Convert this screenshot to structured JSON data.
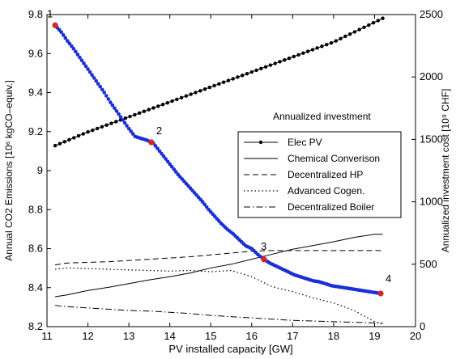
{
  "chart_data": {
    "type": "line",
    "xlabel": "PV installed capacity [GW]",
    "ylabel_left": "Annual CO2 Emissions [10⁶ kgCO–equiv.]",
    "ylabel_right": "Annualized investment cost [10⁹ CHF]",
    "xlim": [
      11,
      20
    ],
    "ylim_left": [
      8.2,
      9.8
    ],
    "ylim_right": [
      0,
      2500
    ],
    "xticks": [
      "11",
      "12",
      "13",
      "14",
      "15",
      "16",
      "17",
      "18",
      "19",
      "20"
    ],
    "yticks_left": [
      "8.2",
      "8.4",
      "8.6",
      "8.8",
      "9",
      "9.2",
      "9.4",
      "9.6",
      "9.8"
    ],
    "yticks_right": [
      "0",
      "500",
      "1000",
      "1500",
      "2000",
      "2500"
    ],
    "grid": false,
    "emissions": {
      "color": "#1a2fd6",
      "x": [
        11.2,
        11.35,
        11.5,
        11.65,
        11.8,
        11.95,
        12.1,
        12.25,
        12.4,
        12.55,
        12.7,
        12.85,
        13.0,
        13.15,
        13.3,
        13.45,
        13.6,
        13.75,
        13.9,
        14.05,
        14.2,
        14.35,
        14.5,
        14.65,
        14.8,
        14.95,
        15.1,
        15.25,
        15.4,
        15.55,
        15.7,
        15.85,
        16.0,
        16.15,
        16.3,
        16.45,
        16.6,
        16.75,
        16.9,
        17.05,
        17.2,
        17.35,
        17.5,
        17.65,
        17.8,
        17.95,
        18.1,
        18.25,
        18.4,
        18.55,
        18.7,
        18.85,
        19.0,
        19.15
      ],
      "y": [
        9.745,
        9.71,
        9.665,
        9.625,
        9.58,
        9.535,
        9.49,
        9.445,
        9.4,
        9.35,
        9.305,
        9.26,
        9.215,
        9.175,
        9.165,
        9.155,
        9.14,
        9.1,
        9.06,
        9.02,
        8.98,
        8.945,
        8.91,
        8.875,
        8.84,
        8.8,
        8.765,
        8.73,
        8.7,
        8.675,
        8.645,
        8.615,
        8.6,
        8.57,
        8.545,
        8.525,
        8.51,
        8.495,
        8.48,
        8.465,
        8.455,
        8.445,
        8.435,
        8.43,
        8.42,
        8.41,
        8.405,
        8.4,
        8.395,
        8.39,
        8.385,
        8.38,
        8.375,
        8.37
      ]
    },
    "highlight_points": [
      {
        "label": "1",
        "x": 11.2,
        "y": 9.745
      },
      {
        "label": "2",
        "x": 13.55,
        "y": 9.145
      },
      {
        "label": "3",
        "x": 16.3,
        "y": 8.545
      },
      {
        "label": "4",
        "x": 19.15,
        "y": 8.37
      }
    ],
    "highlight_color": "#d62728",
    "legend": {
      "title": "Annualized investment",
      "placement": "center-right"
    },
    "series": [
      {
        "name": "Elec PV",
        "style": "solid-marker",
        "x": [
          11.2,
          12,
          13,
          14,
          15,
          16,
          17,
          18,
          19.2
        ],
        "values": [
          1450,
          1560,
          1680,
          1800,
          1920,
          2040,
          2160,
          2280,
          2470
        ]
      },
      {
        "name": "Chemical Converison",
        "style": "solid",
        "x": [
          11.2,
          11.5,
          12,
          12.5,
          13,
          13.5,
          14,
          14.5,
          15,
          15.5,
          16,
          16.5,
          17,
          17.5,
          18,
          18.5,
          19,
          19.2
        ],
        "values": [
          240,
          255,
          290,
          315,
          345,
          375,
          400,
          430,
          470,
          500,
          540,
          580,
          620,
          650,
          680,
          715,
          740,
          740
        ]
      },
      {
        "name": "Decentralized HP",
        "style": "dashed",
        "x": [
          11.2,
          11.5,
          12,
          12.5,
          13,
          13.5,
          14,
          14.5,
          15,
          15.5,
          16,
          16.5,
          17,
          17.5,
          18,
          18.5,
          19,
          19.2
        ],
        "values": [
          495,
          510,
          515,
          520,
          530,
          540,
          550,
          560,
          575,
          590,
          605,
          610,
          610,
          610,
          610,
          610,
          610,
          610
        ]
      },
      {
        "name": "Advanced Cogen.",
        "style": "dotted",
        "x": [
          11.2,
          11.5,
          12,
          12.5,
          13,
          13.5,
          14,
          14.5,
          15,
          15.5,
          16,
          16.5,
          17,
          17.5,
          18,
          18.5,
          19,
          19.2
        ],
        "values": [
          460,
          470,
          465,
          460,
          455,
          450,
          445,
          450,
          440,
          450,
          400,
          320,
          280,
          230,
          190,
          130,
          40,
          20
        ]
      },
      {
        "name": "Decentralized Boiler",
        "style": "dashdot",
        "x": [
          11.2,
          11.5,
          12,
          12.5,
          13,
          13.5,
          14,
          14.5,
          15,
          15.5,
          16,
          16.5,
          17,
          17.5,
          18,
          18.5,
          19,
          19.2
        ],
        "values": [
          170,
          160,
          150,
          140,
          130,
          125,
          115,
          105,
          90,
          80,
          70,
          60,
          50,
          45,
          40,
          35,
          30,
          30
        ]
      }
    ]
  }
}
